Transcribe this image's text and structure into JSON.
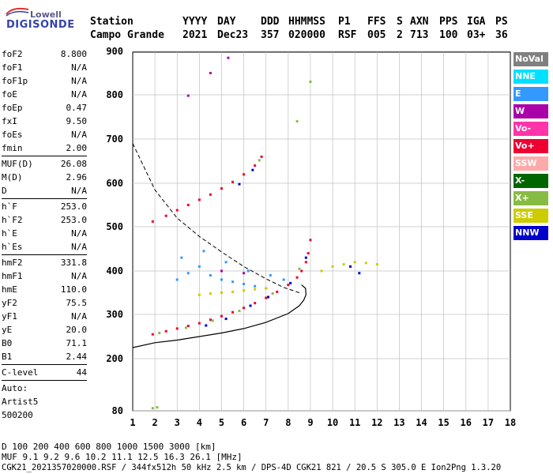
{
  "logo": {
    "line1": "Lowell",
    "line2": "DIGISONDE"
  },
  "header": {
    "row1": [
      "Station",
      "YYYY",
      "DAY",
      "DDD",
      "HHMMSS",
      "P1",
      "FFS",
      "S",
      "AXN",
      "PPS",
      "IGA",
      "PS"
    ],
    "row2": [
      "Campo Grande",
      "2021",
      "Dec23",
      "357",
      "020000",
      "RSF",
      "005",
      "2",
      "713",
      "100",
      "03+",
      "36"
    ]
  },
  "params": {
    "group1": [
      {
        "k": "foF2",
        "v": "8.800"
      },
      {
        "k": "foF1",
        "v": "N/A"
      },
      {
        "k": "foF1p",
        "v": "N/A"
      },
      {
        "k": "foE",
        "v": "N/A"
      },
      {
        "k": "foEp",
        "v": "0.47"
      },
      {
        "k": "fxI",
        "v": "9.50"
      },
      {
        "k": "foEs",
        "v": "N/A"
      },
      {
        "k": "fmin",
        "v": "2.00"
      }
    ],
    "group2": [
      {
        "k": "MUF(D)",
        "v": "26.08"
      },
      {
        "k": "M(D)",
        "v": "2.96"
      },
      {
        "k": "D",
        "v": "N/A"
      }
    ],
    "group3": [
      {
        "k": "h`F",
        "v": "253.0"
      },
      {
        "k": "h`F2",
        "v": "253.0"
      },
      {
        "k": "h`E",
        "v": "N/A"
      },
      {
        "k": "h`Es",
        "v": "N/A"
      }
    ],
    "group4": [
      {
        "k": "hmF2",
        "v": "331.8"
      },
      {
        "k": "hmF1",
        "v": "N/A"
      },
      {
        "k": "hmE",
        "v": "110.0"
      },
      {
        "k": "yF2",
        "v": "75.5"
      },
      {
        "k": "yF1",
        "v": "N/A"
      },
      {
        "k": "yE",
        "v": "20.0"
      },
      {
        "k": "B0",
        "v": "71.1"
      },
      {
        "k": "B1",
        "v": "2.44"
      }
    ],
    "clevel": {
      "k": "C-level",
      "v": "44"
    },
    "auto": [
      "Auto:",
      "Artist5",
      "500200"
    ]
  },
  "legend": [
    {
      "label": "NoVal",
      "color": "#808080"
    },
    {
      "label": "NNE",
      "color": "#00e0ff"
    },
    {
      "label": "E",
      "color": "#3399ff"
    },
    {
      "label": "W",
      "color": "#aa00aa"
    },
    {
      "label": "Vo-",
      "color": "#ff33aa"
    },
    {
      "label": "Vo+",
      "color": "#ee0033"
    },
    {
      "label": "SSW",
      "color": "#ffaaaa"
    },
    {
      "label": "X-",
      "color": "#006600"
    },
    {
      "label": "X+",
      "color": "#88bb44"
    },
    {
      "label": "SSE",
      "color": "#cccc00"
    },
    {
      "label": "NNW",
      "color": "#0000cc"
    }
  ],
  "footer": {
    "d_row": "D     100  200  400  600  800 1000 1500 3000 [km]",
    "muf_row": "MUF   9.1  9.2  9.6 10.2 11.1 12.5 16.3 26.1 [MHz]",
    "info": "CGK21_2021357020000.RSF / 344fx512h 50 kHz 2.5 km / DPS-4D CGK21 821 / 20.5 S 305.0 E Ion2Png 1.3.20"
  },
  "chart_data": {
    "type": "scatter",
    "xlim": [
      1,
      18
    ],
    "ylim": [
      80,
      900
    ],
    "x_ticks": [
      "1",
      "2",
      "3",
      "4",
      "5",
      "6",
      "7",
      "8",
      "9",
      "10",
      "11",
      "12",
      "13",
      "14",
      "15",
      "16",
      "17",
      "18"
    ],
    "y_ticks": [
      "80",
      "200",
      "300",
      "400",
      "500",
      "600",
      "700",
      "800",
      "900"
    ],
    "y_tick_values": [
      80,
      200,
      300,
      400,
      500,
      600,
      700,
      800,
      900
    ],
    "grid": true,
    "series": [
      {
        "color": "#ee0033",
        "points": [
          [
            1.9,
            255
          ],
          [
            2.5,
            262
          ],
          [
            3,
            268
          ],
          [
            3.5,
            274
          ],
          [
            4,
            280
          ],
          [
            4.5,
            288
          ],
          [
            5,
            296
          ],
          [
            5.5,
            305
          ],
          [
            6,
            315
          ],
          [
            6.5,
            326
          ],
          [
            7,
            338
          ],
          [
            7.5,
            352
          ],
          [
            8,
            368
          ],
          [
            8.4,
            385
          ],
          [
            8.6,
            400
          ],
          [
            8.8,
            420
          ],
          [
            8.9,
            440
          ],
          [
            9.0,
            470
          ]
        ]
      },
      {
        "color": "#ee0033",
        "points": [
          [
            1.9,
            512
          ],
          [
            2.5,
            525
          ],
          [
            3,
            538
          ],
          [
            3.5,
            550
          ],
          [
            4,
            562
          ],
          [
            4.5,
            574
          ],
          [
            5,
            588
          ],
          [
            5.5,
            603
          ],
          [
            6,
            620
          ],
          [
            6.5,
            640
          ],
          [
            6.8,
            660
          ]
        ]
      },
      {
        "color": "#3399ff",
        "points": [
          [
            3,
            380
          ],
          [
            3.5,
            395
          ],
          [
            4,
            410
          ],
          [
            4.5,
            390
          ],
          [
            5,
            380
          ],
          [
            5.5,
            375
          ],
          [
            6,
            370
          ],
          [
            6.5,
            365
          ],
          [
            7,
            360
          ],
          [
            3.2,
            430
          ],
          [
            4.2,
            445
          ],
          [
            5.2,
            420
          ],
          [
            6.2,
            400
          ],
          [
            7.2,
            390
          ],
          [
            7.8,
            380
          ]
        ]
      },
      {
        "color": "#cccc00",
        "points": [
          [
            4,
            345
          ],
          [
            4.5,
            348
          ],
          [
            5,
            350
          ],
          [
            5.5,
            352
          ],
          [
            6,
            355
          ],
          [
            6.5,
            358
          ],
          [
            7,
            360
          ],
          [
            9.5,
            400
          ],
          [
            10,
            410
          ],
          [
            10.5,
            415
          ],
          [
            11,
            420
          ],
          [
            11.5,
            418
          ],
          [
            12,
            415
          ]
        ]
      },
      {
        "color": "#0000cc",
        "points": [
          [
            4.3,
            275
          ],
          [
            5.2,
            290
          ],
          [
            6.3,
            320
          ],
          [
            7.1,
            340
          ],
          [
            8.1,
            372
          ],
          [
            8.8,
            430
          ],
          [
            5.8,
            598
          ],
          [
            6.4,
            630
          ],
          [
            10.8,
            410
          ],
          [
            11.2,
            395
          ]
        ]
      },
      {
        "color": "#88bb44",
        "points": [
          [
            2.2,
            258
          ],
          [
            3.4,
            270
          ],
          [
            4.6,
            286
          ],
          [
            5.8,
            308
          ],
          [
            7.3,
            348
          ],
          [
            8.5,
            405
          ],
          [
            6.7,
            652
          ],
          [
            8.4,
            740
          ],
          [
            9,
            830
          ],
          [
            1.9,
            86
          ],
          [
            2.1,
            88
          ]
        ]
      },
      {
        "color": "#aa00aa",
        "points": [
          [
            3.5,
            798
          ],
          [
            4.5,
            850
          ],
          [
            5.3,
            885
          ],
          [
            5.0,
            400
          ],
          [
            6.0,
            395
          ]
        ]
      }
    ],
    "profile_curve": [
      [
        1,
        225
      ],
      [
        2,
        236
      ],
      [
        3,
        242
      ],
      [
        4,
        250
      ],
      [
        5,
        258
      ],
      [
        6,
        268
      ],
      [
        7,
        282
      ],
      [
        8,
        302
      ],
      [
        8.5,
        320
      ],
      [
        8.7,
        333
      ],
      [
        8.8,
        345
      ],
      [
        8.78,
        360
      ],
      [
        8.6,
        368
      ]
    ],
    "muf_curve": [
      [
        1,
        690
      ],
      [
        2,
        585
      ],
      [
        3,
        520
      ],
      [
        4,
        478
      ],
      [
        5,
        443
      ],
      [
        6,
        410
      ],
      [
        7,
        382
      ],
      [
        7.8,
        362
      ],
      [
        8.5,
        350
      ]
    ]
  }
}
